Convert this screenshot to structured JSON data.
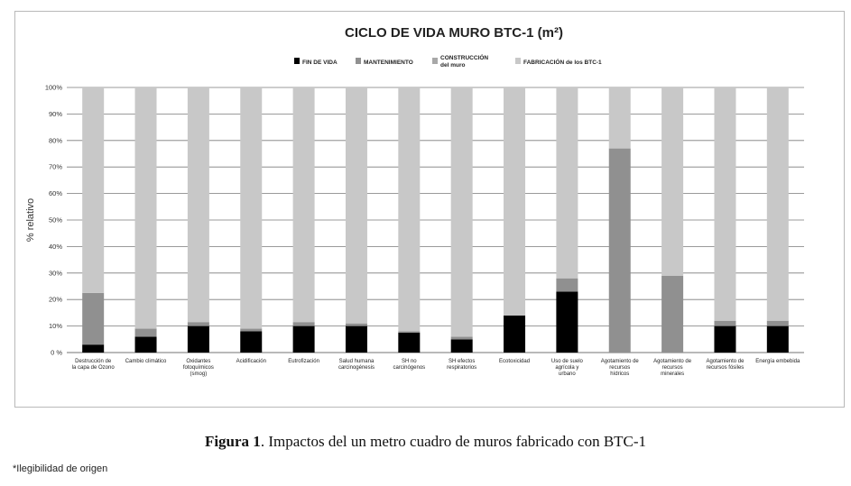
{
  "chart_data": {
    "type": "bar",
    "stacked": true,
    "normalized": true,
    "title": "CICLO DE VIDA MURO BTC-1 (m²)",
    "ylabel": "% relativo",
    "ylim": [
      0,
      100
    ],
    "yticks": [
      "0 %",
      "10%",
      "20%",
      "30%",
      "40%",
      "50%",
      "60%",
      "70%",
      "80%",
      "90%",
      "100%"
    ],
    "yticks_values": [
      0,
      10,
      20,
      30,
      40,
      50,
      60,
      70,
      80,
      90,
      100
    ],
    "grid": true,
    "legend_position": "top",
    "categories": [
      "Destrucción de la capa de Ozono",
      "Cambio climático",
      "Oxidantes fotoquímicos (smog)",
      "Acidificación",
      "Eutrofización",
      "Salud humana carcinogénesis",
      "SH no carcinógenos",
      "SH efectos respiratorios",
      "Ecotoxicidad",
      "Uso de suelo agrícola y urbano",
      "Agotamiento de recursos hídricos",
      "Agotamiento de recursos minerales",
      "Agotamiento de recursos fósiles",
      "Energía embebida"
    ],
    "series": [
      {
        "name": "FIN DE VIDA",
        "color": "#000000",
        "values": [
          3,
          6,
          10,
          8,
          10,
          10,
          7.5,
          5,
          14,
          23,
          0,
          0,
          10,
          10
        ]
      },
      {
        "name": "MANTENIMIENTO",
        "color": "#909090",
        "values": [
          19.5,
          3,
          1.5,
          1,
          1.5,
          1,
          0.5,
          1,
          0,
          5,
          77,
          29,
          2,
          2
        ]
      },
      {
        "name": "CONSTRUCCIÓN del muro",
        "color": "#a8a8a8",
        "values": [
          0,
          0,
          0,
          0,
          0,
          0,
          0,
          0,
          0,
          0,
          0,
          0,
          0,
          0
        ]
      },
      {
        "name": "FABRICACIÓN de los BTC-1",
        "color": "#c8c8c8",
        "values": [
          77.5,
          91,
          88.5,
          91,
          88.5,
          89,
          92,
          94,
          86,
          72,
          23,
          71,
          88,
          88
        ]
      }
    ]
  },
  "caption": {
    "label": "Figura 1",
    "text": ". Impactos del un metro cuadro de muros fabricado con BTC-1"
  },
  "note": "*Ilegibilidad de origen"
}
